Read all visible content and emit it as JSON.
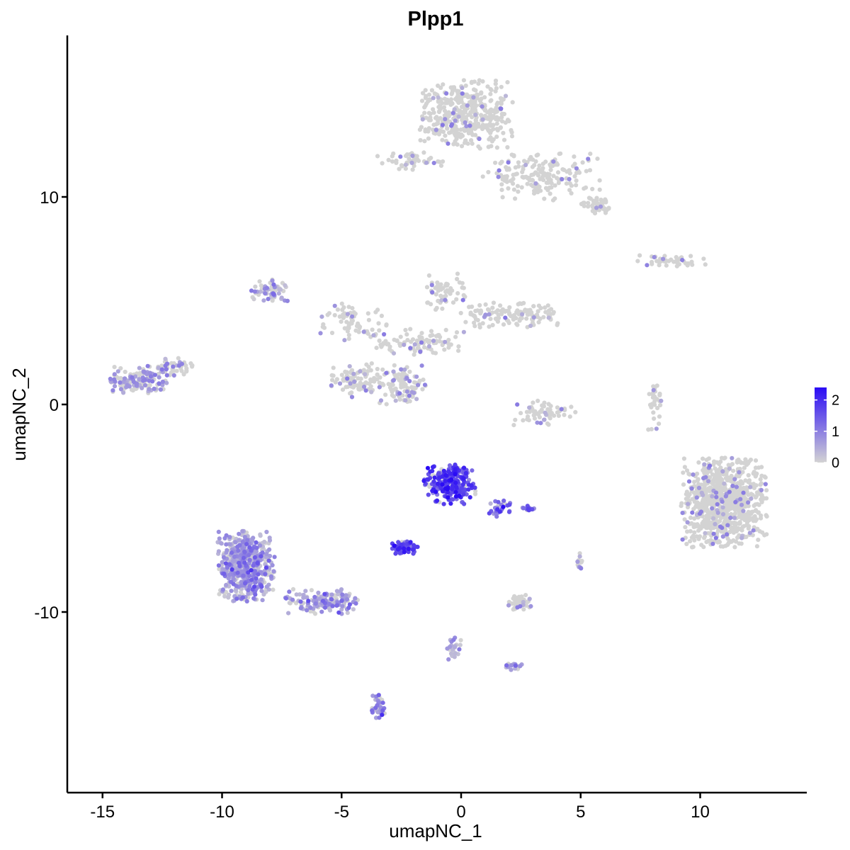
{
  "chart_data": {
    "type": "scatter",
    "title": "Plpp1",
    "xlabel": "umapNC_1",
    "ylabel": "umapNC_2",
    "xlim": [
      -16.2,
      14.7
    ],
    "ylim": [
      -18.0,
      17.8
    ],
    "x_ticks": [
      -15,
      -10,
      -5,
      0,
      5,
      10
    ],
    "x_tick_labels": [
      "-15",
      "-10",
      "-5",
      "0",
      "5",
      "10"
    ],
    "y_ticks": [
      -10,
      0,
      10
    ],
    "y_tick_labels": [
      "-10",
      "0",
      "10"
    ],
    "grid": false,
    "color_scale": {
      "low_color": "#d3d3d3",
      "high_color": "#2a0bf5",
      "min": 0,
      "max": 2.4,
      "legend_ticks": [
        0,
        1,
        2
      ],
      "legend_tick_labels": [
        "0",
        "1",
        "2"
      ],
      "legend_position": "right"
    },
    "clusters": [
      {
        "cx": 0.2,
        "cy": 14.0,
        "rx": 2.0,
        "ry": 1.7,
        "n": 420,
        "expr": 0.02
      },
      {
        "cx": 3.4,
        "cy": 11.0,
        "rx": 2.5,
        "ry": 1.2,
        "n": 180,
        "expr": 0.03
      },
      {
        "cx": 5.6,
        "cy": 9.6,
        "rx": 0.6,
        "ry": 0.4,
        "n": 50,
        "expr": 0.03
      },
      {
        "cx": -2.2,
        "cy": 11.7,
        "rx": 1.5,
        "ry": 0.5,
        "n": 45,
        "expr": 0.05
      },
      {
        "cx": 8.8,
        "cy": 6.9,
        "rx": 1.6,
        "ry": 0.3,
        "n": 45,
        "expr": 0.05
      },
      {
        "cx": -8.0,
        "cy": 5.5,
        "rx": 0.9,
        "ry": 0.6,
        "n": 60,
        "expr": 0.55
      },
      {
        "cx": -4.5,
        "cy": 4.0,
        "rx": 1.6,
        "ry": 0.9,
        "n": 70,
        "expr": 0.04
      },
      {
        "cx": -0.7,
        "cy": 5.3,
        "rx": 1.0,
        "ry": 1.0,
        "n": 60,
        "expr": 0.02
      },
      {
        "cx": 2.0,
        "cy": 4.3,
        "rx": 2.1,
        "ry": 0.6,
        "n": 130,
        "expr": 0.02
      },
      {
        "cx": -1.8,
        "cy": 3.0,
        "rx": 2.0,
        "ry": 0.7,
        "n": 90,
        "expr": 0.03
      },
      {
        "cx": -4.5,
        "cy": 1.2,
        "rx": 1.0,
        "ry": 0.9,
        "n": 90,
        "expr": 0.06
      },
      {
        "cx": -2.6,
        "cy": 1.0,
        "rx": 1.2,
        "ry": 1.0,
        "n": 110,
        "expr": 0.06
      },
      {
        "cx": -13.5,
        "cy": 1.2,
        "rx": 1.3,
        "ry": 0.7,
        "n": 160,
        "expr": 0.18
      },
      {
        "cx": -12.0,
        "cy": 1.8,
        "rx": 0.8,
        "ry": 0.5,
        "n": 45,
        "expr": 0.12
      },
      {
        "cx": 3.5,
        "cy": -0.4,
        "rx": 1.3,
        "ry": 0.6,
        "n": 60,
        "expr": 0.05
      },
      {
        "cx": 8.1,
        "cy": -0.1,
        "rx": 0.3,
        "ry": 1.2,
        "n": 30,
        "expr": 0.08
      },
      {
        "cx": 11.0,
        "cy": -4.7,
        "rx": 1.8,
        "ry": 2.2,
        "n": 820,
        "expr": 0.03
      },
      {
        "cx": -0.5,
        "cy": -3.8,
        "rx": 1.1,
        "ry": 1.0,
        "n": 240,
        "expr": 1.65
      },
      {
        "cx": -2.4,
        "cy": -6.9,
        "rx": 0.6,
        "ry": 0.3,
        "n": 70,
        "expr": 1.6
      },
      {
        "cx": -9.0,
        "cy": -7.8,
        "rx": 1.2,
        "ry": 1.7,
        "n": 520,
        "expr": 0.65
      },
      {
        "cx": -5.8,
        "cy": -9.5,
        "rx": 1.6,
        "ry": 0.6,
        "n": 150,
        "expr": 0.55
      },
      {
        "cx": 2.5,
        "cy": -9.5,
        "rx": 0.6,
        "ry": 0.4,
        "n": 40,
        "expr": 0.05
      },
      {
        "cx": -3.5,
        "cy": -14.5,
        "rx": 0.3,
        "ry": 0.6,
        "n": 40,
        "expr": 0.65
      },
      {
        "cx": 2.2,
        "cy": -12.6,
        "rx": 0.4,
        "ry": 0.2,
        "n": 20,
        "expr": 0.6
      },
      {
        "cx": -0.3,
        "cy": -11.6,
        "rx": 0.3,
        "ry": 0.7,
        "n": 25,
        "expr": 0.35
      },
      {
        "cx": 5.0,
        "cy": -7.5,
        "rx": 0.15,
        "ry": 0.4,
        "n": 15,
        "expr": 0.1
      },
      {
        "cx": 1.6,
        "cy": -5.0,
        "rx": 0.5,
        "ry": 0.5,
        "n": 30,
        "expr": 1.1
      },
      {
        "cx": 2.8,
        "cy": -5.0,
        "rx": 0.3,
        "ry": 0.15,
        "n": 15,
        "expr": 1.2
      }
    ]
  }
}
